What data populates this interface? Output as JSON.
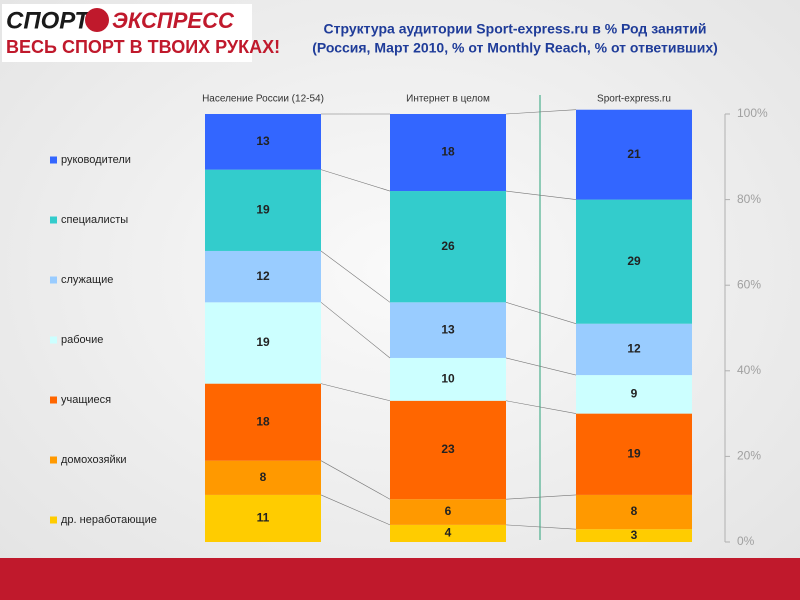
{
  "header": {
    "logo_word1": "СПОРТ",
    "logo_word2": "ЭКСПРЕСС",
    "slogan": "ВЕСЬ СПОРТ В ТВОИХ РУКАХ!"
  },
  "chart_data": {
    "type": "stacked_bar",
    "title": "Структура аудитории Sport-express.ru в % Род занятий",
    "subtitle": "(Россия, Март 2010, % от Monthly Reach, % от ответивших)",
    "categories": [
      "Население России (12-54)",
      "Интернет в целом",
      "Sport-express.ru"
    ],
    "series": [
      {
        "name": "др. неработающие",
        "color": "#ffcc00",
        "values": [
          11,
          4,
          3
        ]
      },
      {
        "name": "домохозяйки",
        "color": "#ff9900",
        "values": [
          8,
          6,
          8
        ]
      },
      {
        "name": "учащиеся",
        "color": "#ff6600",
        "values": [
          18,
          23,
          19
        ]
      },
      {
        "name": "рабочие",
        "color": "#ccffff",
        "values": [
          19,
          10,
          9
        ]
      },
      {
        "name": "служащие",
        "color": "#99ccff",
        "values": [
          12,
          13,
          12
        ]
      },
      {
        "name": "специалисты",
        "color": "#33cccc",
        "values": [
          19,
          26,
          29
        ]
      },
      {
        "name": "руководители",
        "color": "#3366ff",
        "values": [
          13,
          18,
          21
        ]
      }
    ],
    "ylim": [
      0,
      100
    ],
    "yticks": [
      {
        "value": 0,
        "label": "0%"
      },
      {
        "value": 20,
        "label": "20%"
      },
      {
        "value": 40,
        "label": "40%"
      },
      {
        "value": 60,
        "label": "60%"
      },
      {
        "value": 80,
        "label": "80%"
      },
      {
        "value": 100,
        "label": "100%"
      }
    ],
    "legend": "left"
  }
}
